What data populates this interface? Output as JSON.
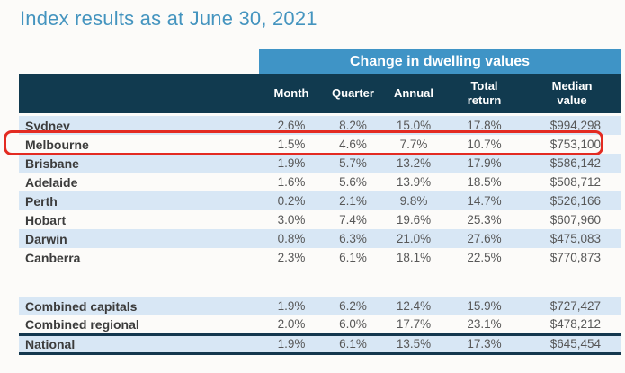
{
  "title": "Index results as at June 30, 2021",
  "table": {
    "band_header": "Change in dwelling values",
    "columns": [
      "Month",
      "Quarter",
      "Annual",
      "Total\nreturn",
      "Median\nvalue"
    ],
    "rows": [
      {
        "name": "Sydney",
        "month": "2.6%",
        "quarter": "8.2%",
        "annual": "15.0%",
        "total_return": "17.8%",
        "median_value": "$994,298",
        "highlighted": false
      },
      {
        "name": "Melbourne",
        "month": "1.5%",
        "quarter": "4.6%",
        "annual": "7.7%",
        "total_return": "10.7%",
        "median_value": "$753,100",
        "highlighted": true
      },
      {
        "name": "Brisbane",
        "month": "1.9%",
        "quarter": "5.7%",
        "annual": "13.2%",
        "total_return": "17.9%",
        "median_value": "$586,142",
        "highlighted": false
      },
      {
        "name": "Adelaide",
        "month": "1.6%",
        "quarter": "5.6%",
        "annual": "13.9%",
        "total_return": "18.5%",
        "median_value": "$508,712",
        "highlighted": false
      },
      {
        "name": "Perth",
        "month": "0.2%",
        "quarter": "2.1%",
        "annual": "9.8%",
        "total_return": "14.7%",
        "median_value": "$526,166",
        "highlighted": false
      },
      {
        "name": "Hobart",
        "month": "3.0%",
        "quarter": "7.4%",
        "annual": "19.6%",
        "total_return": "25.3%",
        "median_value": "$607,960",
        "highlighted": false
      },
      {
        "name": "Darwin",
        "month": "0.8%",
        "quarter": "6.3%",
        "annual": "21.0%",
        "total_return": "27.6%",
        "median_value": "$475,083",
        "highlighted": false
      },
      {
        "name": "Canberra",
        "month": "2.3%",
        "quarter": "6.1%",
        "annual": "18.1%",
        "total_return": "22.5%",
        "median_value": "$770,873",
        "highlighted": false
      },
      {
        "name": "Combined capitals",
        "month": "1.9%",
        "quarter": "6.2%",
        "annual": "12.4%",
        "total_return": "15.9%",
        "median_value": "$727,427",
        "highlighted": false
      },
      {
        "name": "Combined regional",
        "month": "2.0%",
        "quarter": "6.0%",
        "annual": "17.7%",
        "total_return": "23.1%",
        "median_value": "$478,212",
        "highlighted": false
      },
      {
        "name": "National",
        "month": "1.9%",
        "quarter": "6.1%",
        "annual": "13.5%",
        "total_return": "17.3%",
        "median_value": "$645,454",
        "highlighted": false
      }
    ]
  },
  "colors": {
    "title_blue": "#4494bf",
    "band_blue": "#3f94c6",
    "header_navy": "#113a4f",
    "row_light_blue": "#d8e7f5",
    "national_rule_navy": "#14374e",
    "highlight_red": "#e32b22"
  }
}
